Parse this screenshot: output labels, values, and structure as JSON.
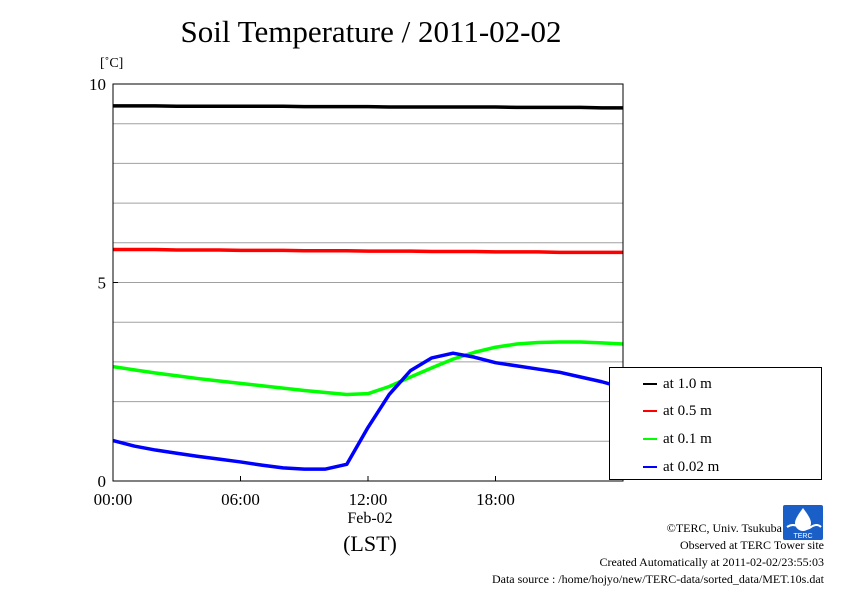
{
  "header": {
    "title": "Soil Temperature / 2011-02-02",
    "unit": "[˚C]"
  },
  "chart_data": {
    "type": "line",
    "title": "Soil Temperature / 2011-02-02",
    "ylabel": "[˚C]",
    "xlabel": "(LST)",
    "x_date_label": "Feb-02",
    "xlim": [
      "00:00",
      "24:00"
    ],
    "ylim": [
      0,
      10
    ],
    "x_ticks": [
      "00:00",
      "06:00",
      "12:00",
      "18:00"
    ],
    "y_ticks": [
      "0",
      "5",
      "10"
    ],
    "grid": true,
    "legend_position": "right, bottom",
    "x": [
      "00:00",
      "01:00",
      "02:00",
      "03:00",
      "04:00",
      "05:00",
      "06:00",
      "07:00",
      "08:00",
      "09:00",
      "10:00",
      "11:00",
      "12:00",
      "13:00",
      "14:00",
      "15:00",
      "16:00",
      "17:00",
      "18:00",
      "19:00",
      "20:00",
      "21:00",
      "22:00",
      "23:00",
      "24:00"
    ],
    "series": [
      {
        "name": "at 1.0 m",
        "color": "#000000",
        "values": [
          9.45,
          9.45,
          9.45,
          9.44,
          9.44,
          9.44,
          9.44,
          9.44,
          9.44,
          9.43,
          9.43,
          9.43,
          9.43,
          9.42,
          9.42,
          9.42,
          9.42,
          9.42,
          9.42,
          9.41,
          9.41,
          9.41,
          9.41,
          9.4,
          9.4
        ]
      },
      {
        "name": "at 0.5 m",
        "color": "#ff0000",
        "values": [
          5.83,
          5.83,
          5.83,
          5.82,
          5.82,
          5.82,
          5.81,
          5.81,
          5.81,
          5.8,
          5.8,
          5.8,
          5.79,
          5.79,
          5.79,
          5.78,
          5.78,
          5.78,
          5.77,
          5.77,
          5.77,
          5.76,
          5.76,
          5.76,
          5.76
        ]
      },
      {
        "name": "at 0.1 m",
        "color": "#00ff00",
        "values": [
          2.88,
          2.8,
          2.72,
          2.65,
          2.58,
          2.52,
          2.46,
          2.4,
          2.34,
          2.28,
          2.23,
          2.18,
          2.2,
          2.38,
          2.62,
          2.85,
          3.07,
          3.24,
          3.37,
          3.45,
          3.49,
          3.5,
          3.5,
          3.48,
          3.45
        ]
      },
      {
        "name": "at 0.02 m",
        "color": "#0000ff",
        "values": [
          1.02,
          0.88,
          0.78,
          0.7,
          0.62,
          0.55,
          0.48,
          0.4,
          0.33,
          0.3,
          0.3,
          0.42,
          1.35,
          2.18,
          2.78,
          3.1,
          3.22,
          3.12,
          2.98,
          2.9,
          2.82,
          2.74,
          2.62,
          2.5,
          2.35
        ]
      }
    ]
  },
  "footer": {
    "copyright": "©TERC, Univ. Tsukuba",
    "observed": "Observed at TERC Tower site",
    "created": "Created Automatically at 2011-02-02/23:55:03",
    "source": "Data source : /home/hojyo/new/TERC-data/sorted_data/MET.10s.dat",
    "logo_text": "TERC"
  }
}
